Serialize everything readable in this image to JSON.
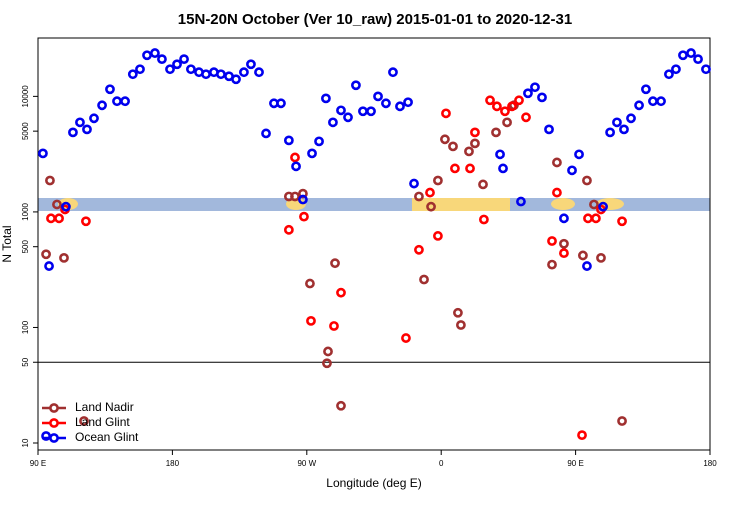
{
  "chart_data": {
    "type": "scatter",
    "title": "15N-20N October (Ver 10_raw)   2015-01-01 to 2020-12-31",
    "x_label": "Longitude (deg E)",
    "y_label": "N Total",
    "log_y": true,
    "legend": "lower left",
    "hline": 50,
    "xlim": [
      90,
      540
    ],
    "ylim": [
      8.7,
      32000
    ],
    "xticks": [
      {
        "value": 90,
        "label": "90 E"
      },
      180,
      {
        "value": 270,
        "label": "90 W"
      },
      {
        "value": 360,
        "label": "0"
      },
      {
        "value": 450,
        "label": "90 E"
      },
      {
        "value": 540,
        "label": "180"
      }
    ],
    "yticks": [
      10,
      50,
      100,
      500,
      1000,
      5000,
      10000
    ],
    "series": [
      {
        "name": "Land Nadir",
        "color": "#a03030",
        "x": [
          95.4,
          98,
          102.7,
          107.4,
          120.8,
          258,
          262.1,
          267.4,
          272.1,
          283.5,
          284.2,
          288.9,
          292.9,
          345.1,
          348.5,
          353.2,
          357.8,
          362.5,
          367.9,
          371.2,
          373.2,
          378.6,
          382.6,
          388,
          396.7,
          404.1,
          408.7,
          434.2,
          437.5,
          442.2,
          454.9,
          457.6,
          462.3,
          467,
          481.1
        ],
        "values": [
          430,
          1870,
          1160,
          400,
          15.5,
          1360,
          1360,
          1440,
          240,
          49,
          62,
          360,
          21,
          1360,
          260,
          1110,
          1870,
          4250,
          3690,
          134,
          105,
          3340,
          3920,
          1730,
          4880,
          5960,
          8370,
          350,
          2680,
          530,
          420,
          1870,
          1160,
          400,
          15.5
        ]
      },
      {
        "name": "Land Glint",
        "color": "#ff0000",
        "x": [
          98.7,
          104.1,
          108.1,
          122.1,
          258,
          262.1,
          268.1,
          272.8,
          288.2,
          292.9,
          336.4,
          345.1,
          352.5,
          357.8,
          363.2,
          369.2,
          379.3,
          382.6,
          388.6,
          392.7,
          397.3,
          402.7,
          407.4,
          412.1,
          416.8,
          434.2,
          437.5,
          442.2,
          454.3,
          458.3,
          463.6,
          467,
          481.1
        ],
        "values": [
          880,
          880,
          1050,
          830,
          700,
          2960,
          910,
          114,
          103,
          200,
          81,
          470,
          1470,
          620,
          7130,
          2380,
          2380,
          4880,
          860,
          9250,
          8200,
          7430,
          8200,
          9250,
          6590,
          560,
          1470,
          440,
          11.7,
          880,
          880,
          1050,
          830
        ]
      },
      {
        "name": "Ocean Glint",
        "color": "#0000ee",
        "x": [
          93.3,
          95.4,
          97.4,
          108.7,
          113.4,
          118.1,
          122.8,
          127.5,
          132.9,
          138.2,
          142.9,
          148.3,
          153.5,
          158.3,
          163,
          168.3,
          173,
          178.4,
          183.1,
          187.8,
          192.4,
          197.8,
          202.5,
          207.8,
          212.5,
          217.9,
          222.6,
          227.9,
          232.6,
          238,
          242.7,
          248,
          252.7,
          258,
          262.8,
          267.4,
          273.5,
          278.2,
          282.8,
          287.5,
          292.9,
          297.6,
          302.9,
          307.6,
          313,
          317.7,
          323,
          327.7,
          332.4,
          337.8,
          341.8,
          399.4,
          401.4,
          413.4,
          418.1,
          422.8,
          427.5,
          432.2,
          442.2,
          447.6,
          452.3,
          457.6,
          468.4,
          473.1,
          477.7,
          482.4,
          487.1,
          492.5,
          497.1,
          501.8,
          507.2,
          512.5,
          517.2,
          521.9,
          527.3,
          532,
          537.3
        ],
        "values": [
          3210,
          11.5,
          340,
          1110,
          4880,
          5960,
          5180,
          6460,
          8370,
          11530,
          9080,
          9080,
          15550,
          17180,
          22700,
          23700,
          21000,
          17180,
          18970,
          21000,
          17180,
          16190,
          15550,
          16190,
          15550,
          14930,
          14060,
          16190,
          18970,
          16190,
          4780,
          8710,
          8710,
          4160,
          2480,
          1280,
          3210,
          4080,
          9610,
          5960,
          7570,
          6590,
          12480,
          7430,
          7430,
          10000,
          8710,
          16190,
          8200,
          8900,
          1760,
          3150,
          2380,
          1230,
          10640,
          12000,
          9800,
          5180,
          880,
          2290,
          3150,
          340,
          1110,
          4880,
          5960,
          5180,
          6460,
          8370,
          11530,
          9080,
          9080,
          15550,
          17180,
          22700,
          23700,
          21000,
          17180
        ]
      }
    ]
  }
}
